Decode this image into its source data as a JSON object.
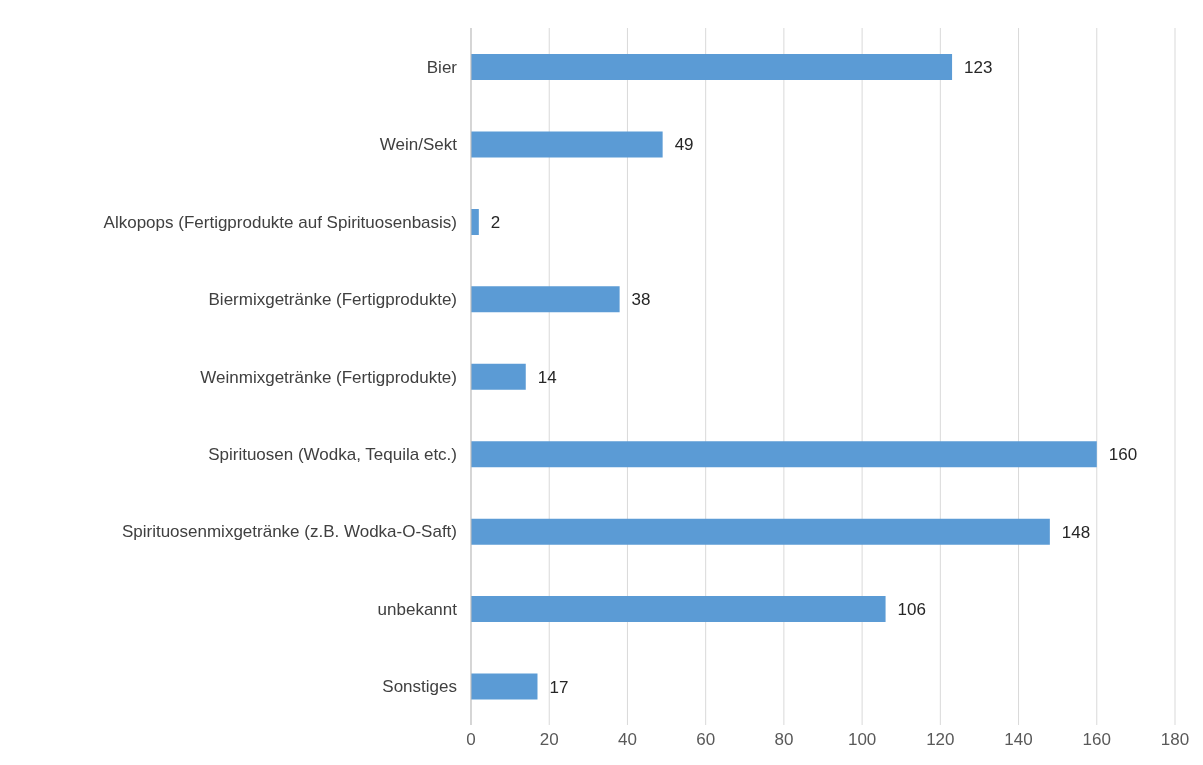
{
  "chart_data": {
    "type": "bar",
    "orientation": "horizontal",
    "categories": [
      "Bier",
      "Wein/Sekt",
      "Alkopops (Fertigprodukte auf Spirituosenbasis)",
      "Biermixgetränke (Fertigprodukte)",
      "Weinmixgetränke (Fertigprodukte)",
      "Spirituosen (Wodka, Tequila etc.)",
      "Spirituosenmixgetränke (z.B. Wodka-O-Saft)",
      "unbekannt",
      "Sonstiges"
    ],
    "values": [
      123,
      49,
      2,
      38,
      14,
      160,
      148,
      106,
      17
    ],
    "color": "#5b9bd5",
    "xlim": [
      0,
      180
    ],
    "xticks": [
      0,
      20,
      40,
      60,
      80,
      100,
      120,
      140,
      160,
      180
    ],
    "grid": "x",
    "data_labels": true
  }
}
